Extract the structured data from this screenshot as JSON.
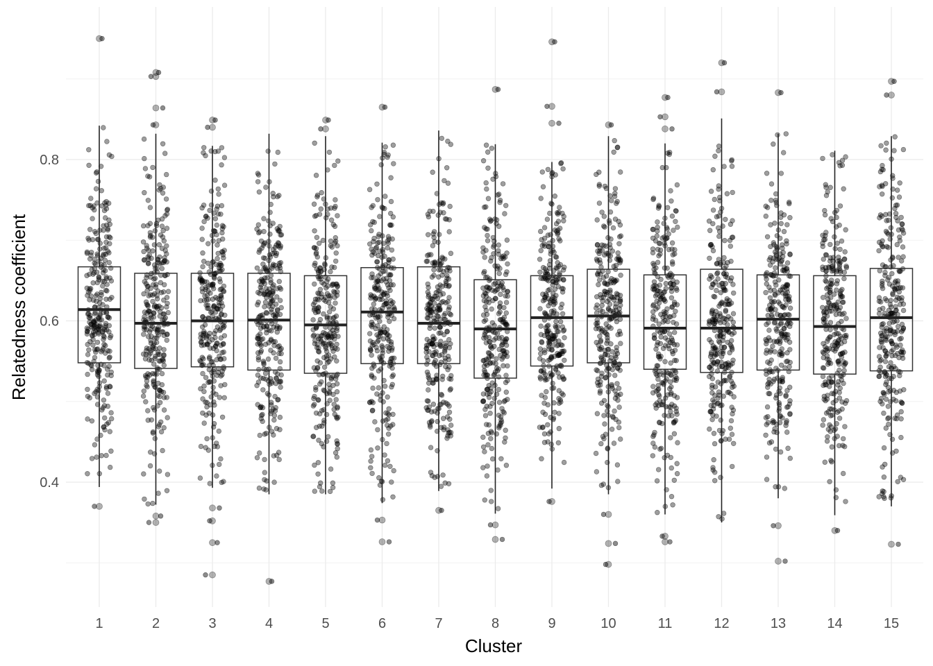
{
  "chart_data": {
    "type": "box",
    "title": "",
    "xlabel": "Cluster",
    "ylabel": "Relatedness coefficient",
    "categories": [
      "1",
      "2",
      "3",
      "4",
      "5",
      "6",
      "7",
      "8",
      "9",
      "10",
      "11",
      "12",
      "13",
      "14",
      "15"
    ],
    "y_ticks": [
      0.4,
      0.6,
      0.8
    ],
    "y_tick_labels": [
      "0.4",
      "0.6",
      "0.8"
    ],
    "ylim": [
      0.27,
      0.97
    ],
    "grid": true,
    "legend": "none",
    "point_color": "#000000",
    "box_stats": [
      {
        "cluster": "1",
        "q1": 0.548,
        "median": 0.614,
        "q3": 0.667,
        "whisker_low": 0.394,
        "whisker_high": 0.842,
        "outliers": [
          0.95,
          0.37
        ]
      },
      {
        "cluster": "2",
        "q1": 0.541,
        "median": 0.597,
        "q3": 0.659,
        "whisker_low": 0.372,
        "whisker_high": 0.832,
        "outliers": [
          0.908,
          0.903,
          0.864,
          0.843,
          0.358,
          0.35
        ]
      },
      {
        "cluster": "3",
        "q1": 0.543,
        "median": 0.6,
        "q3": 0.659,
        "whisker_low": 0.393,
        "whisker_high": 0.817,
        "outliers": [
          0.849,
          0.84,
          0.368,
          0.352,
          0.325,
          0.285
        ]
      },
      {
        "cluster": "4",
        "q1": 0.539,
        "median": 0.601,
        "q3": 0.659,
        "whisker_low": 0.385,
        "whisker_high": 0.832,
        "outliers": [
          0.277
        ]
      },
      {
        "cluster": "5",
        "q1": 0.535,
        "median": 0.595,
        "q3": 0.656,
        "whisker_low": 0.385,
        "whisker_high": 0.829,
        "outliers": [
          0.849,
          0.838
        ]
      },
      {
        "cluster": "6",
        "q1": 0.547,
        "median": 0.611,
        "q3": 0.666,
        "whisker_low": 0.374,
        "whisker_high": 0.821,
        "outliers": [
          0.865,
          0.353,
          0.326
        ]
      },
      {
        "cluster": "7",
        "q1": 0.547,
        "median": 0.597,
        "q3": 0.667,
        "whisker_low": 0.389,
        "whisker_high": 0.836,
        "outliers": [
          0.365
        ]
      },
      {
        "cluster": "8",
        "q1": 0.529,
        "median": 0.59,
        "q3": 0.651,
        "whisker_low": 0.361,
        "whisker_high": 0.819,
        "outliers": [
          0.887,
          0.347,
          0.329
        ]
      },
      {
        "cluster": "9",
        "q1": 0.544,
        "median": 0.604,
        "q3": 0.656,
        "whisker_low": 0.392,
        "whisker_high": 0.797,
        "outliers": [
          0.946,
          0.866,
          0.845,
          0.376
        ]
      },
      {
        "cluster": "10",
        "q1": 0.548,
        "median": 0.606,
        "q3": 0.664,
        "whisker_low": 0.385,
        "whisker_high": 0.829,
        "outliers": [
          0.843,
          0.36,
          0.324,
          0.298
        ]
      },
      {
        "cluster": "11",
        "q1": 0.54,
        "median": 0.591,
        "q3": 0.657,
        "whisker_low": 0.36,
        "whisker_high": 0.82,
        "outliers": [
          0.877,
          0.853,
          0.838,
          0.333,
          0.326
        ]
      },
      {
        "cluster": "12",
        "q1": 0.536,
        "median": 0.591,
        "q3": 0.664,
        "whisker_low": 0.35,
        "whisker_high": 0.851,
        "outliers": [
          0.92,
          0.884
        ]
      },
      {
        "cluster": "13",
        "q1": 0.539,
        "median": 0.602,
        "q3": 0.657,
        "whisker_low": 0.38,
        "whisker_high": 0.832,
        "outliers": [
          0.883,
          0.346,
          0.302
        ]
      },
      {
        "cluster": "14",
        "q1": 0.534,
        "median": 0.593,
        "q3": 0.656,
        "whisker_low": 0.359,
        "whisker_high": 0.811,
        "outliers": [
          0.34
        ]
      },
      {
        "cluster": "15",
        "q1": 0.538,
        "median": 0.604,
        "q3": 0.665,
        "whisker_low": 0.37,
        "whisker_high": 0.829,
        "outliers": [
          0.897,
          0.88,
          0.323
        ]
      }
    ]
  }
}
